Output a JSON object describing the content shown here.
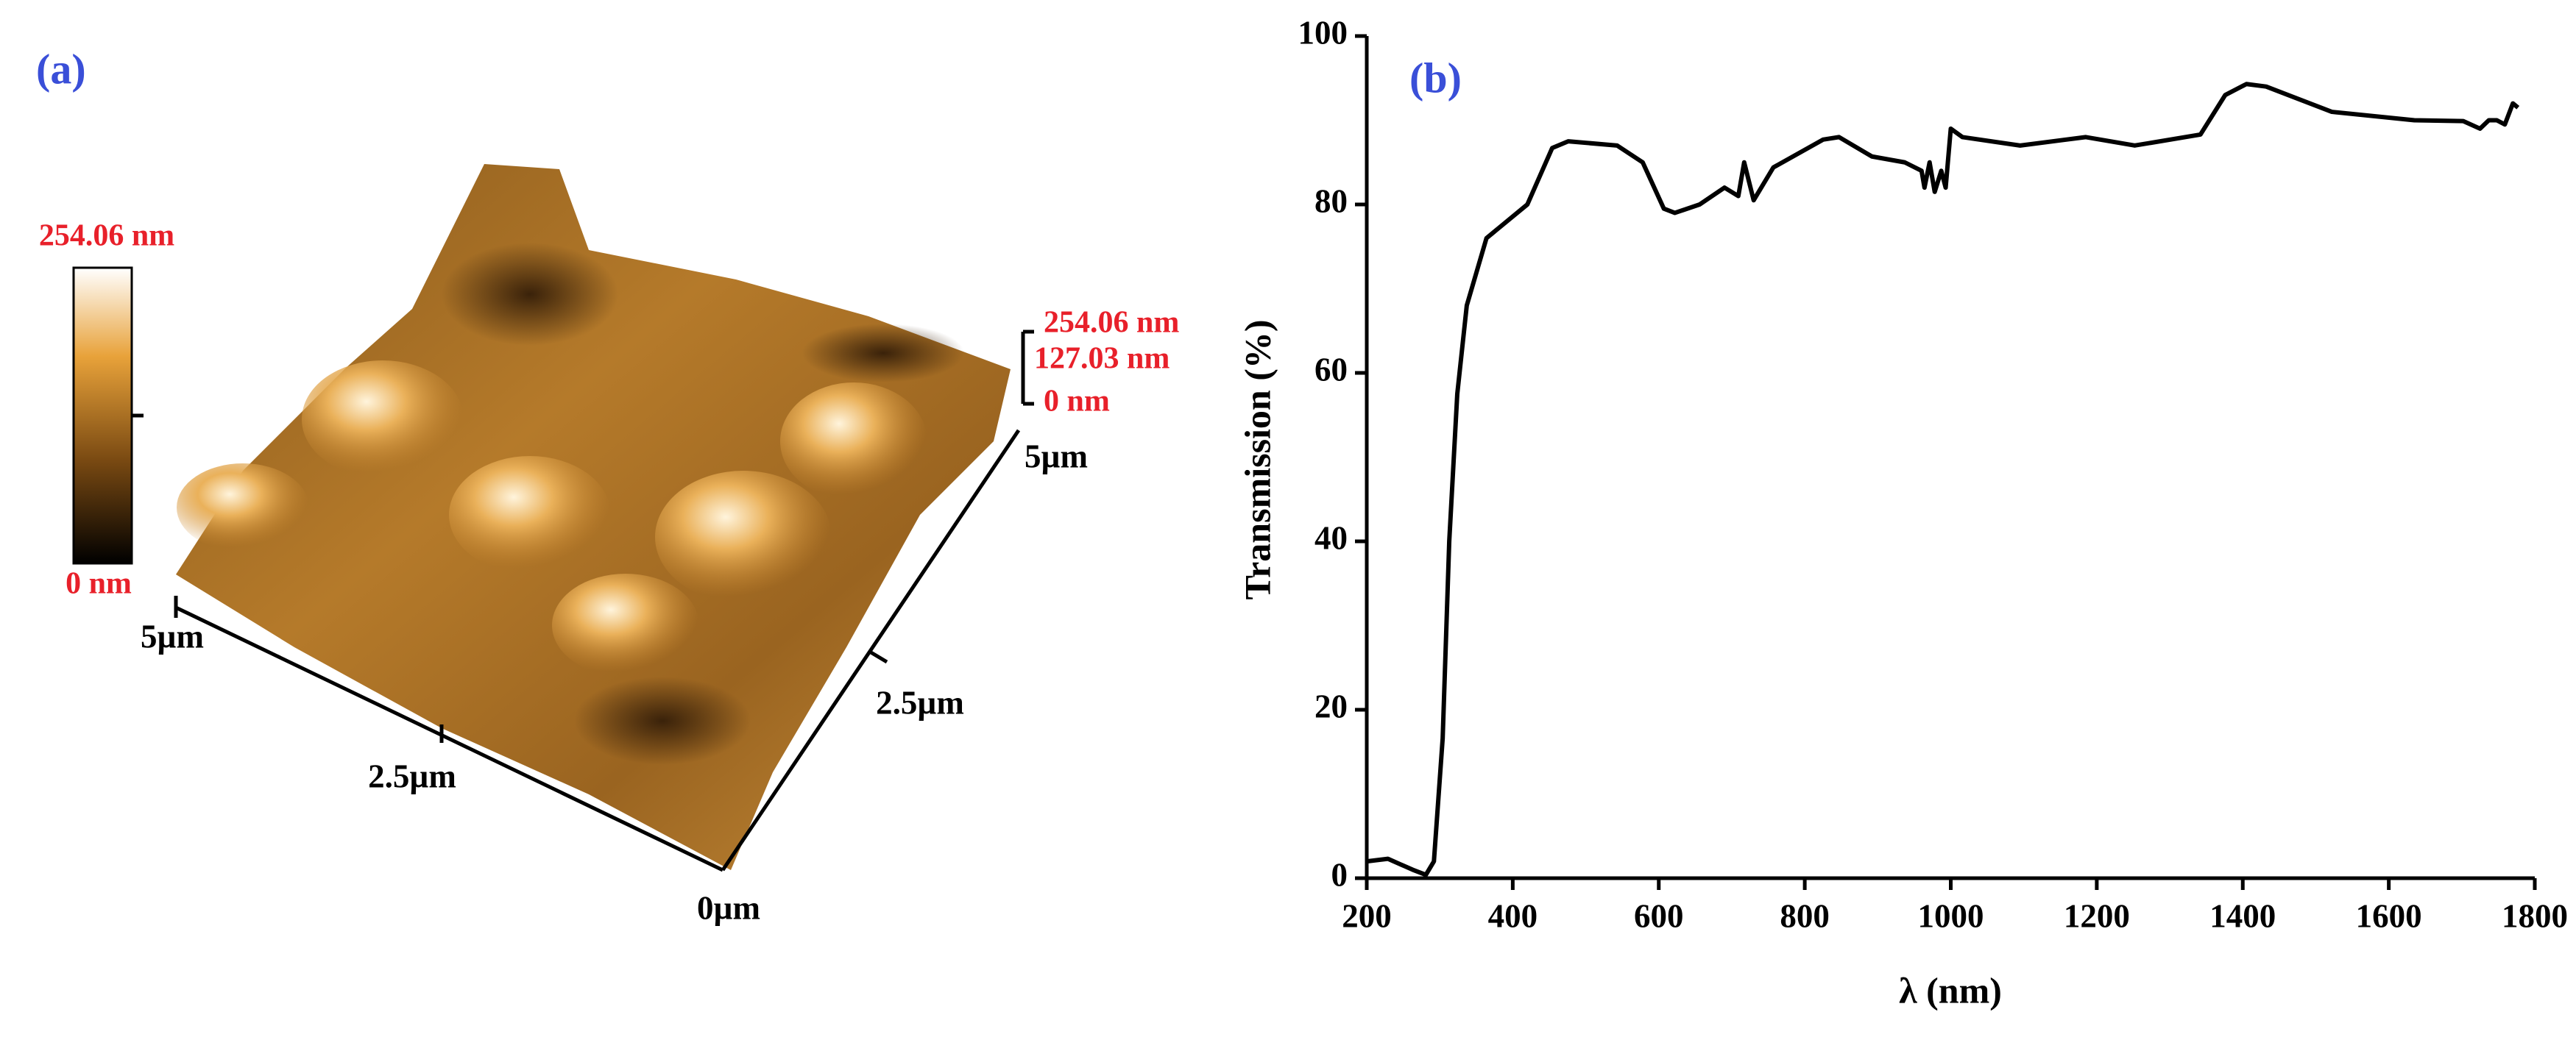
{
  "panel_a": {
    "label": "(a)",
    "colorbar": {
      "max": "254.06 nm",
      "min": "0 nm"
    },
    "z_axis": [
      "254.06 nm",
      "127.03 nm",
      "0 nm"
    ],
    "x_axis": [
      "5µm",
      "2.5µm",
      "0µm"
    ],
    "y_axis": [
      "2.5µm",
      "5µm"
    ]
  },
  "chart_data": {
    "type": "line",
    "label": "(b)",
    "xlabel": "λ (nm)",
    "ylabel": "Transmission (%)",
    "x": [
      200,
      229,
      263,
      281,
      292,
      304,
      313,
      324,
      337,
      364,
      420,
      454,
      476,
      543,
      578,
      607,
      622,
      656,
      690,
      709,
      717,
      730,
      757,
      825,
      847,
      892,
      937,
      960,
      964,
      971,
      978,
      987,
      993,
      1000,
      1016,
      1095,
      1185,
      1252,
      1342,
      1376,
      1405,
      1432,
      1522,
      1635,
      1702,
      1725,
      1737,
      1748,
      1759,
      1770,
      1777
    ],
    "series": [
      {
        "name": "Transmission",
        "color": "#000000",
        "values": [
          2,
          2.3,
          1,
          0.4,
          2,
          16.6,
          40,
          57.5,
          68,
          76,
          80,
          86.7,
          87.5,
          87,
          85,
          79.5,
          79,
          80,
          82,
          81,
          85,
          80.5,
          84.4,
          87.7,
          88,
          85.7,
          85,
          84,
          82,
          85,
          81.5,
          84,
          82,
          89,
          88,
          87,
          88,
          87,
          88.3,
          93,
          94.3,
          94,
          91,
          90,
          89.9,
          89,
          90,
          90,
          89.5,
          92,
          91.5
        ]
      }
    ],
    "xlim": [
      200,
      1800
    ],
    "xticks": [
      200,
      400,
      600,
      800,
      1000,
      1200,
      1400,
      1600,
      1800
    ],
    "ylim": [
      0,
      100
    ],
    "yticks": [
      0,
      20,
      40,
      60,
      80,
      100
    ]
  }
}
